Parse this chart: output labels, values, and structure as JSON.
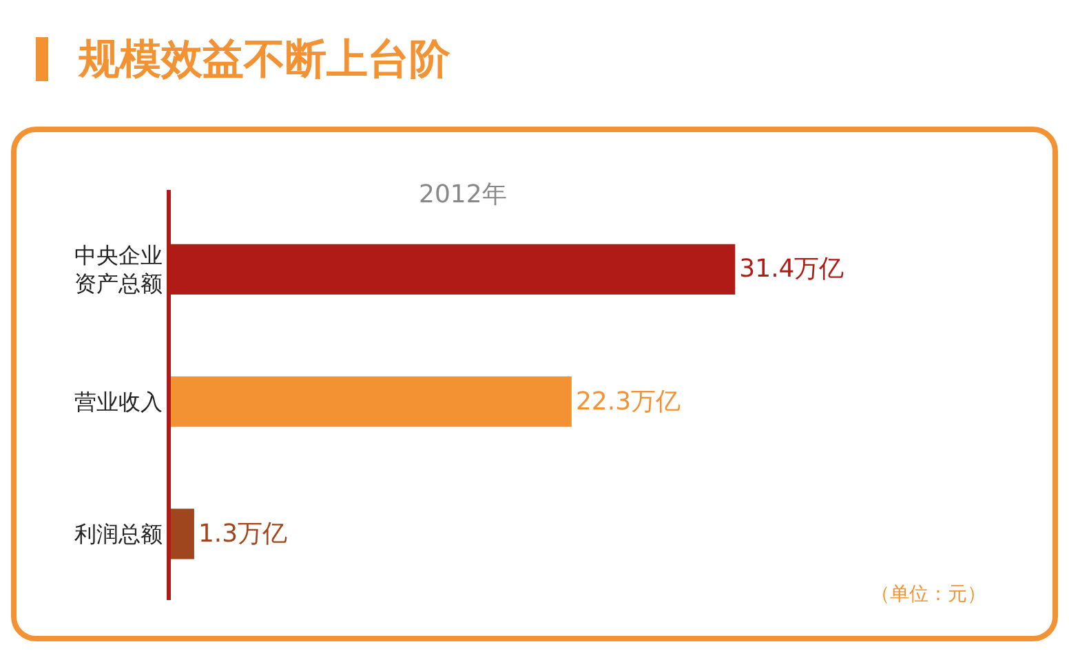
{
  "chart_data": {
    "type": "bar",
    "orientation": "horizontal",
    "title": "规模效益不断上台阶",
    "subtitle": "2012年",
    "categories": [
      "中央企业资产总额",
      "营业收入",
      "利润总额"
    ],
    "values": [
      31.4,
      22.3,
      1.3
    ],
    "colors": [
      "#b01a17",
      "#f39233",
      "#a0461f"
    ],
    "value_labels": [
      "31.4万亿",
      "22.3万亿",
      "1.3万亿"
    ],
    "tick_labels": "y",
    "grid": false,
    "annotations": [
      "（单位：元）"
    ]
  }
}
